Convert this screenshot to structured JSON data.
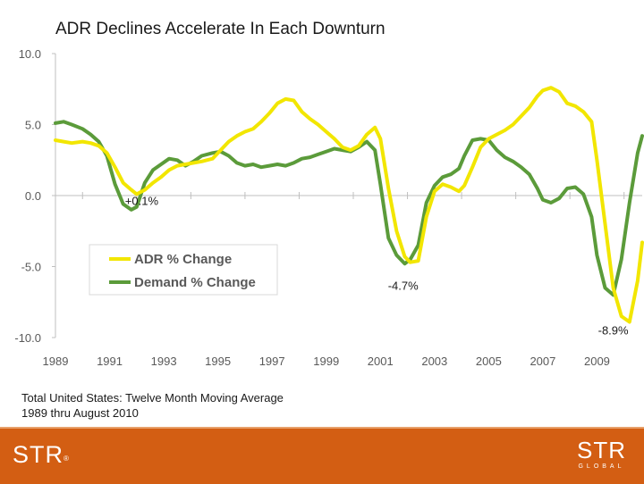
{
  "page": {
    "footnote_line1": "Total United States: Twelve Month Moving Average",
    "footnote_line2": "1989 thru August 2010",
    "logo_left_text": "STR",
    "logo_left_mark": "®",
    "logo_right_text": "STR",
    "logo_right_sub": "GLOBAL"
  },
  "colors": {
    "adr": "#f2e600",
    "demand": "#5b9b3a",
    "footer": "#d35e13",
    "axis": "#bfbfbf"
  },
  "chart_data": {
    "type": "line",
    "title": "ADR Declines Accelerate In Each Downturn",
    "xlabel": "",
    "ylabel": "",
    "ylim": [
      -10,
      10
    ],
    "xlim": [
      1989,
      2010.67
    ],
    "yticks": [
      "10.0",
      "5.0",
      "0.0",
      "-5.0",
      "-10.0"
    ],
    "ytick_values": [
      10,
      5,
      0,
      -5,
      -10
    ],
    "xticks": [
      "1989",
      "1991",
      "1993",
      "1995",
      "1997",
      "1999",
      "2001",
      "2003",
      "2005",
      "2007",
      "2009"
    ],
    "xtick_values": [
      1989,
      1991,
      1993,
      1995,
      1997,
      1999,
      2001,
      2003,
      2005,
      2007,
      2009
    ],
    "legend": {
      "position": "center-left",
      "entries": [
        "ADR % Change",
        "Demand % Change"
      ]
    },
    "annotations": [
      {
        "text": "+0.1%",
        "x": 1991.9,
        "y": 0.1
      },
      {
        "text": "-4.7%",
        "x": 2002.6,
        "y": -4.7
      },
      {
        "text": "-8.9%",
        "x": 2009.7,
        "y": -8.9
      }
    ],
    "series": [
      {
        "name": "ADR % Change",
        "color_key": "adr",
        "x": [
          1989.0,
          1989.3,
          1989.6,
          1990.0,
          1990.3,
          1990.6,
          1990.9,
          1991.2,
          1991.5,
          1991.8,
          1992.0,
          1992.3,
          1992.6,
          1992.9,
          1993.2,
          1993.5,
          1993.8,
          1994.1,
          1994.4,
          1994.8,
          1995.1,
          1995.4,
          1995.7,
          1996.0,
          1996.3,
          1996.6,
          1996.9,
          1997.2,
          1997.5,
          1997.8,
          1998.1,
          1998.4,
          1998.7,
          1999.0,
          1999.3,
          1999.6,
          1999.9,
          2000.2,
          2000.5,
          2000.8,
          2001.0,
          2001.3,
          2001.6,
          2001.9,
          2002.1,
          2002.4,
          2002.7,
          2003.0,
          2003.3,
          2003.6,
          2003.9,
          2004.1,
          2004.4,
          2004.7,
          2005.0,
          2005.3,
          2005.6,
          2005.9,
          2006.2,
          2006.5,
          2006.8,
          2007.0,
          2007.3,
          2007.6,
          2007.9,
          2008.2,
          2008.5,
          2008.8,
          2009.0,
          2009.3,
          2009.6,
          2009.9,
          2010.2,
          2010.5,
          2010.67
        ],
        "values": [
          3.9,
          3.8,
          3.7,
          3.8,
          3.7,
          3.5,
          3.0,
          2.0,
          0.9,
          0.4,
          0.1,
          0.4,
          0.9,
          1.3,
          1.8,
          2.1,
          2.2,
          2.3,
          2.4,
          2.6,
          3.2,
          3.8,
          4.2,
          4.5,
          4.7,
          5.2,
          5.8,
          6.5,
          6.8,
          6.7,
          5.9,
          5.4,
          5.0,
          4.5,
          4.0,
          3.4,
          3.2,
          3.5,
          4.3,
          4.8,
          4.0,
          0.5,
          -2.5,
          -4.3,
          -4.7,
          -4.6,
          -1.5,
          0.3,
          0.8,
          0.6,
          0.3,
          0.7,
          2.0,
          3.4,
          4.0,
          4.3,
          4.6,
          5.0,
          5.6,
          6.2,
          7.0,
          7.4,
          7.6,
          7.3,
          6.5,
          6.3,
          5.9,
          5.2,
          2.5,
          -2.0,
          -6.5,
          -8.5,
          -8.9,
          -6.0,
          -3.3
        ]
      },
      {
        "name": "Demand % Change",
        "color_key": "demand",
        "x": [
          1989.0,
          1989.3,
          1989.6,
          1990.0,
          1990.3,
          1990.6,
          1990.9,
          1991.2,
          1991.5,
          1991.8,
          1992.0,
          1992.3,
          1992.6,
          1992.9,
          1993.2,
          1993.5,
          1993.8,
          1994.1,
          1994.4,
          1994.8,
          1995.1,
          1995.4,
          1995.7,
          1996.0,
          1996.3,
          1996.6,
          1996.9,
          1997.2,
          1997.5,
          1997.8,
          1998.1,
          1998.4,
          1998.7,
          1999.0,
          1999.3,
          1999.6,
          1999.9,
          2000.2,
          2000.5,
          2000.8,
          2001.0,
          2001.3,
          2001.6,
          2001.9,
          2002.1,
          2002.4,
          2002.7,
          2003.0,
          2003.3,
          2003.6,
          2003.9,
          2004.1,
          2004.4,
          2004.7,
          2005.0,
          2005.3,
          2005.6,
          2005.9,
          2006.2,
          2006.5,
          2006.8,
          2007.0,
          2007.3,
          2007.6,
          2007.9,
          2008.2,
          2008.5,
          2008.8,
          2009.0,
          2009.3,
          2009.6,
          2009.9,
          2010.2,
          2010.5,
          2010.67
        ],
        "values": [
          5.1,
          5.2,
          5.0,
          4.7,
          4.3,
          3.8,
          2.8,
          0.8,
          -0.6,
          -1.0,
          -0.8,
          0.9,
          1.8,
          2.2,
          2.6,
          2.5,
          2.1,
          2.4,
          2.8,
          3.0,
          3.1,
          2.8,
          2.3,
          2.1,
          2.2,
          2.0,
          2.1,
          2.2,
          2.1,
          2.3,
          2.6,
          2.7,
          2.9,
          3.1,
          3.3,
          3.2,
          3.1,
          3.4,
          3.8,
          3.2,
          0.8,
          -3.0,
          -4.2,
          -4.8,
          -4.5,
          -3.5,
          -0.5,
          0.7,
          1.3,
          1.5,
          1.9,
          2.8,
          3.9,
          4.0,
          3.9,
          3.2,
          2.7,
          2.4,
          2.0,
          1.5,
          0.5,
          -0.3,
          -0.5,
          -0.2,
          0.5,
          0.6,
          0.1,
          -1.5,
          -4.2,
          -6.5,
          -7.0,
          -4.5,
          -0.5,
          3.0,
          4.2
        ]
      }
    ]
  }
}
